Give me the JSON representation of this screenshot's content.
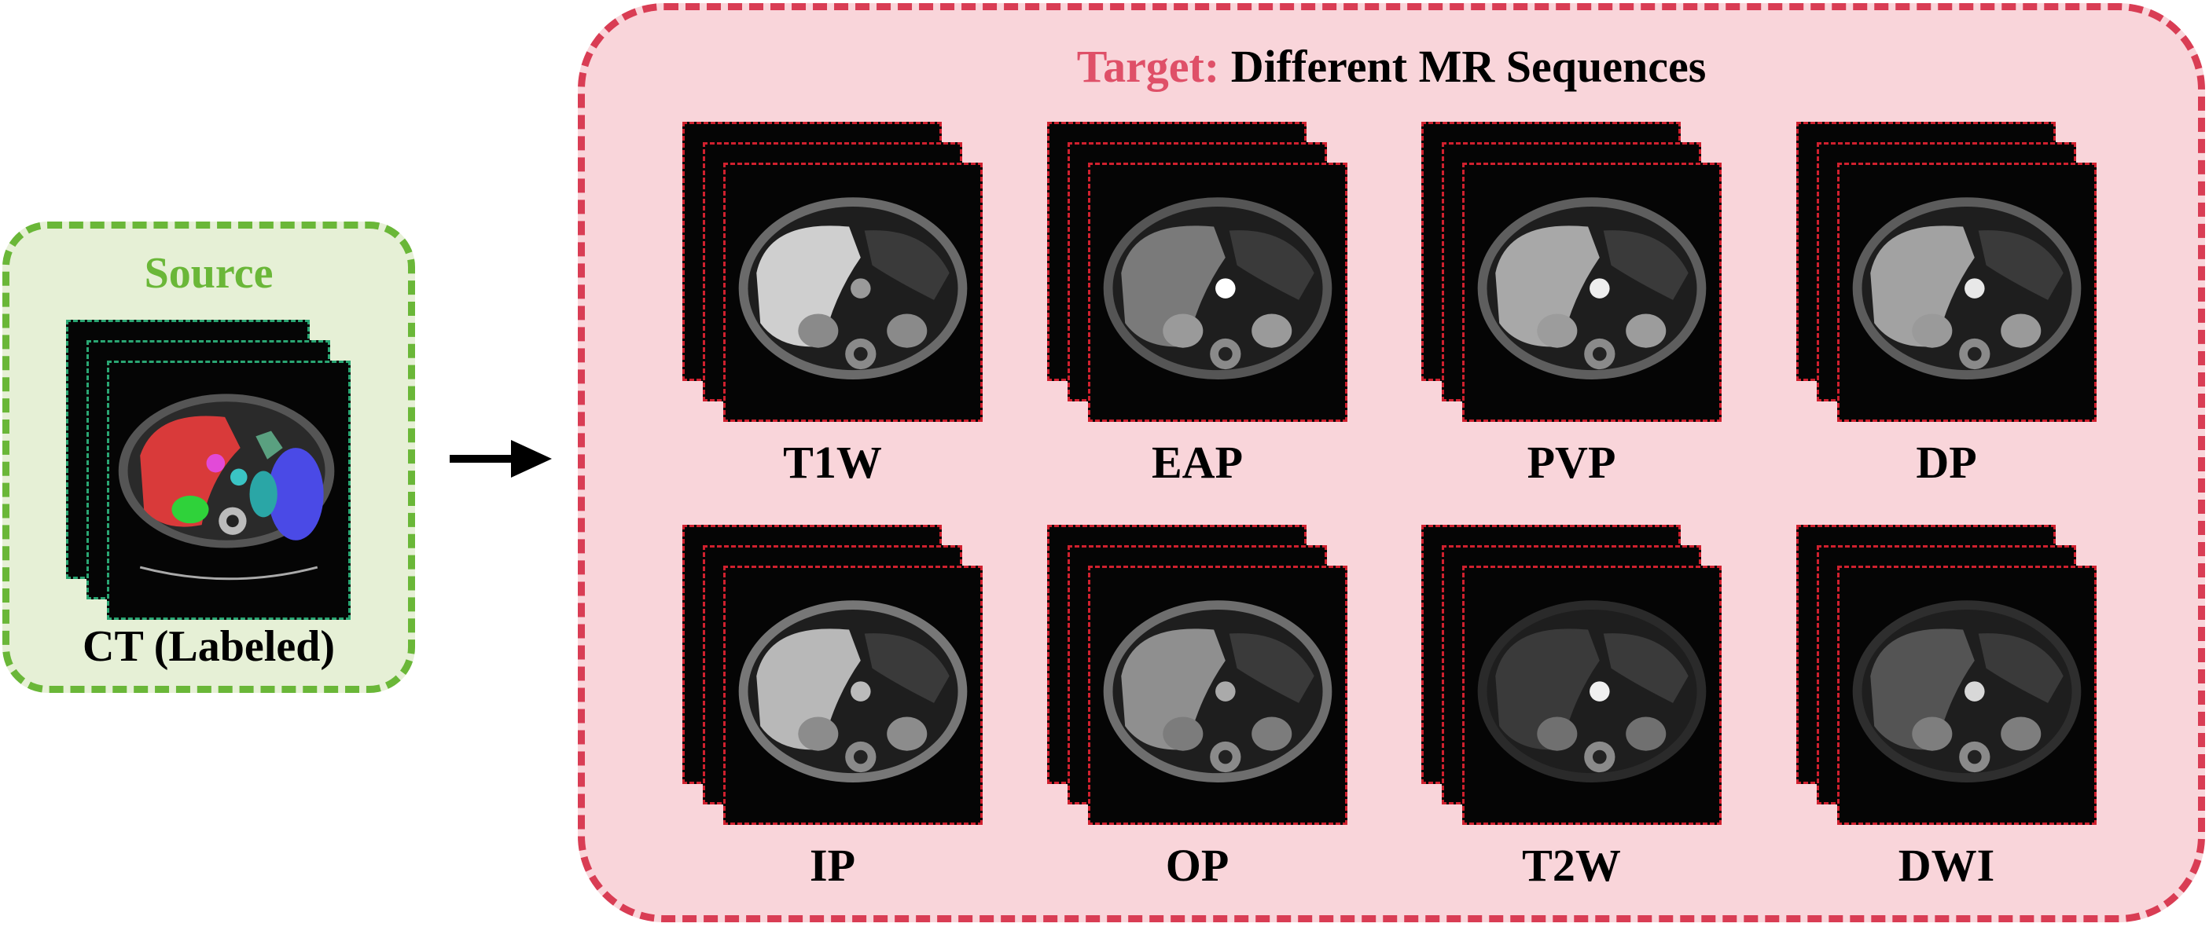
{
  "source": {
    "title": "Source",
    "caption": "CT (Labeled)"
  },
  "target": {
    "title_prefix": "Target:",
    "title_rest": " Different MR Sequences"
  },
  "sequences": [
    {
      "label": "T1W"
    },
    {
      "label": "EAP"
    },
    {
      "label": "PVP"
    },
    {
      "label": "DP"
    },
    {
      "label": "IP"
    },
    {
      "label": "OP"
    },
    {
      "label": "T2W"
    },
    {
      "label": "DWI"
    }
  ],
  "colors": {
    "source_border": "#6ab738",
    "source_fill": "#e6f0d6",
    "target_border": "#d93d54",
    "target_fill": "#f9d5da",
    "target_title_accent": "#df5068"
  }
}
